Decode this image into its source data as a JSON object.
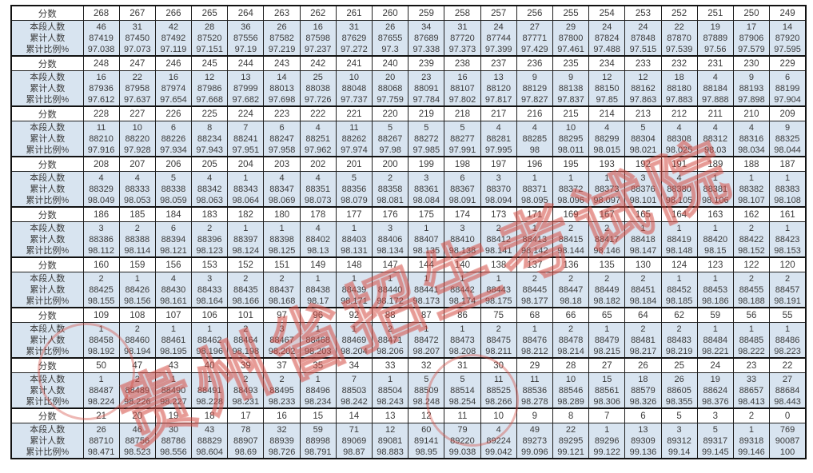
{
  "watermark": {
    "text": "贵州省招生考试院",
    "color": "#d54e44"
  },
  "table": {
    "score_label": "分数",
    "stat_labels": [
      "本段人数",
      "累计人数",
      "累计比例%"
    ],
    "groups": [
      {
        "scores": [
          268,
          267,
          266,
          265,
          264,
          263,
          262,
          261,
          260,
          259,
          258,
          257,
          256,
          255,
          254,
          253,
          252,
          251,
          250,
          249
        ],
        "counts": [
          46,
          31,
          42,
          28,
          36,
          26,
          16,
          31,
          26,
          34,
          31,
          24,
          27,
          29,
          24,
          24,
          22,
          19,
          17,
          14
        ],
        "cumulative": [
          87419,
          87450,
          87492,
          87520,
          87556,
          87582,
          87598,
          87629,
          87655,
          87689,
          87720,
          87744,
          87771,
          87800,
          87824,
          87848,
          87870,
          87889,
          87906,
          87920
        ],
        "percent": [
          "97.038",
          "97.073",
          "97.119",
          "97.151",
          "97.19",
          "97.219",
          "97.237",
          "97.272",
          "97.3",
          "97.338",
          "97.373",
          "97.399",
          "97.429",
          "97.461",
          "97.488",
          "97.515",
          "97.539",
          "97.56",
          "97.579",
          "97.595"
        ]
      },
      {
        "scores": [
          248,
          247,
          246,
          245,
          244,
          243,
          242,
          241,
          240,
          239,
          238,
          237,
          236,
          235,
          234,
          233,
          232,
          231,
          230,
          229
        ],
        "counts": [
          16,
          22,
          16,
          12,
          13,
          14,
          25,
          10,
          20,
          23,
          16,
          13,
          9,
          9,
          12,
          12,
          18,
          4,
          9,
          6
        ],
        "cumulative": [
          87936,
          87958,
          87974,
          87986,
          87999,
          88013,
          88038,
          88048,
          88068,
          88091,
          88107,
          88120,
          88129,
          88138,
          88150,
          88162,
          88180,
          88184,
          88193,
          88199
        ],
        "percent": [
          "97.612",
          "97.637",
          "97.654",
          "97.668",
          "97.682",
          "97.698",
          "97.726",
          "97.737",
          "97.759",
          "97.784",
          "97.802",
          "97.817",
          "97.827",
          "97.837",
          "97.85",
          "97.863",
          "97.883",
          "97.888",
          "97.898",
          "97.904"
        ]
      },
      {
        "scores": [
          228,
          227,
          226,
          225,
          224,
          223,
          222,
          221,
          220,
          219,
          218,
          217,
          216,
          215,
          214,
          213,
          212,
          211,
          210,
          209
        ],
        "counts": [
          11,
          10,
          6,
          8,
          7,
          6,
          4,
          11,
          5,
          5,
          5,
          4,
          4,
          10,
          4,
          5,
          4,
          4,
          4,
          9
        ],
        "cumulative": [
          88210,
          88220,
          88226,
          88234,
          88241,
          88247,
          88251,
          88262,
          88267,
          88272,
          88277,
          88281,
          88285,
          88295,
          88299,
          88304,
          88308,
          88312,
          88316,
          88325
        ],
        "percent": [
          "97.916",
          "97.928",
          "97.934",
          "97.943",
          "97.951",
          "97.958",
          "97.962",
          "97.974",
          "97.98",
          "97.985",
          "97.991",
          "97.995",
          "98",
          "98.011",
          "98.015",
          "98.021",
          "98.025",
          "98.03",
          "98.034",
          "98.044"
        ]
      },
      {
        "scores": [
          208,
          207,
          206,
          205,
          204,
          203,
          202,
          201,
          200,
          199,
          198,
          197,
          196,
          195,
          193,
          192,
          191,
          189,
          188,
          187
        ],
        "counts": [
          4,
          4,
          5,
          4,
          1,
          4,
          4,
          5,
          2,
          3,
          6,
          3,
          1,
          1,
          1,
          3,
          4,
          1,
          1,
          1
        ],
        "cumulative": [
          88329,
          88333,
          88338,
          88342,
          88343,
          88347,
          88351,
          88356,
          88358,
          88361,
          88367,
          88370,
          88371,
          88372,
          88373,
          88376,
          88380,
          88381,
          88382,
          88383
        ],
        "percent": [
          "98.049",
          "98.053",
          "98.059",
          "98.063",
          "98.064",
          "98.069",
          "98.073",
          "98.079",
          "98.081",
          "98.084",
          "98.091",
          "98.094",
          "98.095",
          "98.096",
          "98.097",
          "98.101",
          "98.105",
          "98.106",
          "98.107",
          "98.108"
        ]
      },
      {
        "scores": [
          186,
          185,
          184,
          183,
          182,
          180,
          178,
          177,
          176,
          175,
          174,
          173,
          171,
          169,
          167,
          165,
          164,
          163,
          162,
          161
        ],
        "counts": [
          3,
          2,
          6,
          2,
          1,
          1,
          4,
          1,
          3,
          1,
          3,
          2,
          1,
          2,
          2,
          1,
          1,
          1,
          2,
          1
        ],
        "cumulative": [
          88386,
          88388,
          88394,
          88396,
          88397,
          88398,
          88402,
          88403,
          88406,
          88407,
          88410,
          88412,
          88413,
          88415,
          88417,
          88418,
          88419,
          88420,
          88422,
          88423
        ],
        "percent": [
          "98.112",
          "98.114",
          "98.121",
          "98.123",
          "98.124",
          "98.125",
          "98.13",
          "98.131",
          "98.134",
          "98.135",
          "98.138",
          "98.141",
          "98.142",
          "98.144",
          "98.146",
          "98.147",
          "98.148",
          "98.15",
          "98.152",
          "98.153"
        ]
      },
      {
        "scores": [
          160,
          159,
          156,
          153,
          152,
          151,
          149,
          148,
          147,
          144,
          140,
          138,
          137,
          136,
          135,
          130,
          124,
          123,
          122,
          120
        ],
        "counts": [
          2,
          1,
          4,
          3,
          2,
          2,
          1,
          1,
          1,
          1,
          1,
          1,
          2,
          2,
          2,
          2,
          1,
          1,
          2,
          2
        ],
        "cumulative": [
          88425,
          88426,
          88430,
          88433,
          88435,
          88437,
          88438,
          88439,
          88440,
          88441,
          88442,
          88443,
          88445,
          88447,
          88449,
          88451,
          88452,
          88453,
          88455,
          88457
        ],
        "percent": [
          "98.155",
          "98.156",
          "98.161",
          "98.164",
          "98.166",
          "98.168",
          "98.17",
          "98.171",
          "98.172",
          "98.173",
          "98.174",
          "98.175",
          "98.177",
          "98.18",
          "98.182",
          "98.184",
          "98.185",
          "98.186",
          "98.188",
          "98.191"
        ]
      },
      {
        "scores": [
          109,
          108,
          107,
          106,
          101,
          97,
          96,
          92,
          88,
          87,
          86,
          75,
          68,
          66,
          65,
          64,
          62,
          59,
          56,
          55
        ],
        "counts": [
          1,
          2,
          1,
          1,
          2,
          3,
          1,
          1,
          2,
          1,
          1,
          2,
          1,
          2,
          1,
          2,
          2,
          1,
          1,
          1
        ],
        "cumulative": [
          88458,
          88460,
          88461,
          88462,
          88464,
          88467,
          88468,
          88469,
          88471,
          88472,
          88473,
          88475,
          88476,
          88478,
          88479,
          88481,
          88483,
          88484,
          88485,
          88486
        ],
        "percent": [
          "98.192",
          "98.194",
          "98.195",
          "98.196",
          "98.198",
          "98.202",
          "98.203",
          "98.204",
          "98.206",
          "98.207",
          "98.208",
          "98.211",
          "98.212",
          "98.214",
          "98.215",
          "98.217",
          "98.219",
          "98.221",
          "98.222",
          "98.223"
        ]
      },
      {
        "scores": [
          50,
          47,
          43,
          40,
          39,
          37,
          35,
          34,
          33,
          32,
          31,
          30,
          29,
          28,
          27,
          26,
          25,
          24,
          23,
          22
        ],
        "counts": [
          1,
          2,
          1,
          1,
          2,
          2,
          1,
          7,
          1,
          5,
          5,
          11,
          11,
          10,
          15,
          18,
          26,
          19,
          33,
          27
        ],
        "cumulative": [
          88487,
          88489,
          88490,
          88491,
          88493,
          88495,
          88496,
          88503,
          88504,
          88509,
          88514,
          88525,
          88536,
          88546,
          88561,
          88579,
          88605,
          88624,
          88657,
          88684
        ],
        "percent": [
          "98.224",
          "98.226",
          "98.227",
          "98.228",
          "98.231",
          "98.233",
          "98.234",
          "98.242",
          "98.243",
          "98.248",
          "98.254",
          "98.266",
          "98.278",
          "98.289",
          "98.306",
          "98.326",
          "98.355",
          "98.376",
          "98.413",
          "98.443"
        ]
      },
      {
        "scores": [
          21,
          20,
          19,
          18,
          17,
          16,
          15,
          14,
          13,
          12,
          11,
          10,
          9,
          8,
          7,
          6,
          5,
          3,
          2,
          0
        ],
        "counts": [
          26,
          46,
          30,
          43,
          78,
          32,
          59,
          71,
          12,
          60,
          79,
          4,
          49,
          22,
          1,
          13,
          3,
          5,
          1,
          769
        ],
        "cumulative": [
          88710,
          88756,
          88786,
          88829,
          88907,
          88939,
          88998,
          89069,
          89081,
          89141,
          89220,
          89224,
          89273,
          89295,
          89296,
          89309,
          89312,
          89317,
          89318,
          90087
        ],
        "percent": [
          "98.471",
          "98.523",
          "98.556",
          "98.604",
          "98.69",
          "98.726",
          "98.791",
          "98.87",
          "98.883",
          "98.95",
          "99.038",
          "99.042",
          "99.096",
          "99.121",
          "99.122",
          "99.136",
          "99.14",
          "99.145",
          "99.146",
          "100"
        ]
      }
    ]
  }
}
